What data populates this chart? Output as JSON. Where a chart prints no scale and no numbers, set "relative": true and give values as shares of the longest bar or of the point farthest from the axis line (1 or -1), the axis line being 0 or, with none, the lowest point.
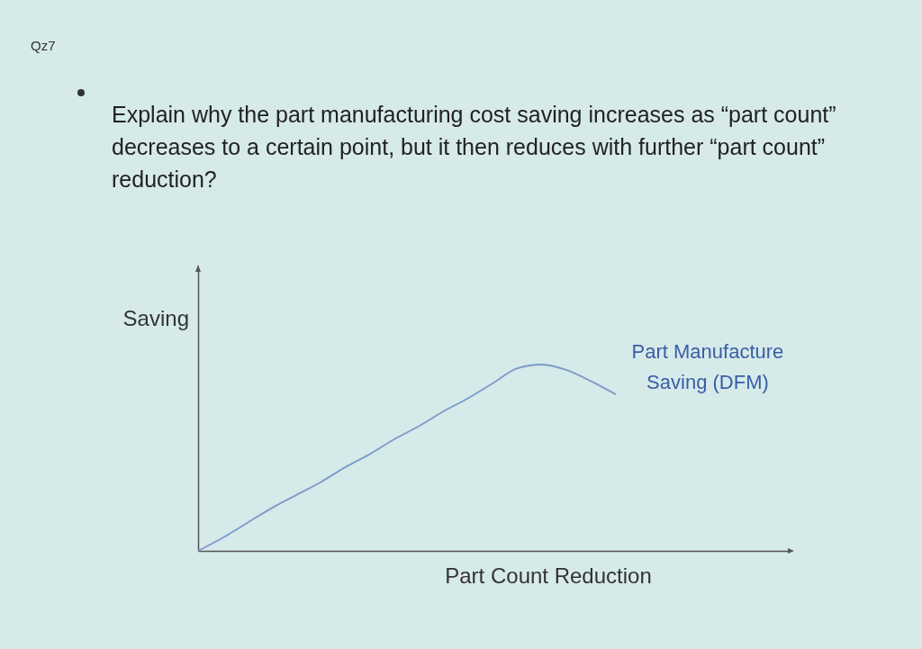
{
  "chart_data": {
    "type": "line",
    "title": "Explain why the part manufacturing cost saving increases as “part count” decreases to a certain point, but it then reduces with further “part count” reduction?",
    "annotations": [
      "Qz7"
    ],
    "xlabel": "Part Count Reduction",
    "ylabel": "Saving",
    "relative": true,
    "categories": [
      null,
      null,
      null,
      null,
      null,
      null,
      null,
      null,
      null,
      null,
      null,
      null,
      null,
      null,
      null,
      null,
      null,
      null,
      null,
      null,
      null,
      null,
      null,
      null,
      null
    ],
    "series": [
      {
        "name": "Part Manufacture Saving (DFM)",
        "color": "#7d9acb",
        "values": [
          0,
          0.07,
          0.15,
          0.23,
          0.3,
          0.37,
          0.45,
          0.52,
          0.6,
          0.67,
          0.75,
          0.82,
          0.9,
          0.98,
          1,
          0.97,
          0.91,
          0.84,
          null,
          null,
          null,
          null,
          null,
          null,
          null
        ]
      }
    ]
  }
}
